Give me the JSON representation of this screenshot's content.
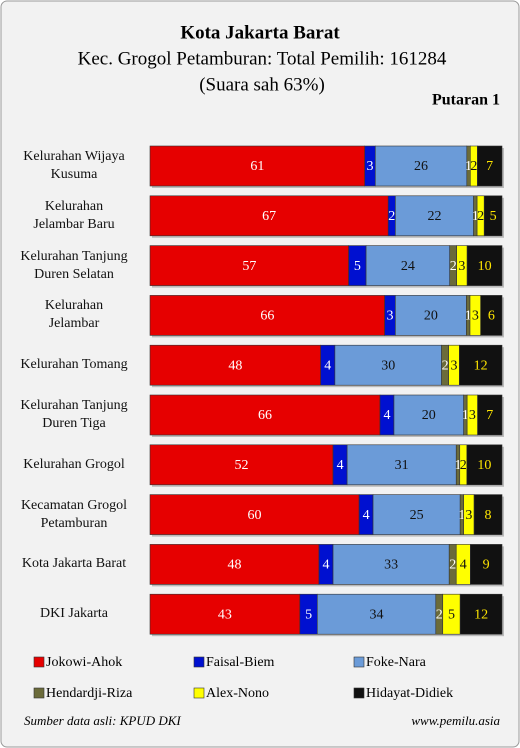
{
  "chart_data": {
    "type": "stacked-bar",
    "title": "Kota Jakarta Barat",
    "subtitle": "Kec. Grogol Petamburan: Total Pemilih: 161284",
    "note": "(Suara sah 63%)",
    "round": "Putaran 1",
    "source": "Sumber data asli: KPUD DKI",
    "website": "www.pemilu.asia",
    "categories": [
      "Kelurahan Wijaya\nKusuma",
      "Kelurahan\nJelambar Baru",
      "Kelurahan Tanjung\nDuren Selatan",
      "Kelurahan\nJelambar",
      "Kelurahan Tomang",
      "Kelurahan Tanjung\nDuren Tiga",
      "Kelurahan Grogol",
      "Kecamatan Grogol\nPetamburan",
      "Kota Jakarta Barat",
      "DKI Jakarta"
    ],
    "series": [
      {
        "name": "Jokowi-Ahok",
        "color": "#e60000",
        "values": [
          61,
          67,
          57,
          66,
          48,
          66,
          52,
          60,
          48,
          43
        ]
      },
      {
        "name": "Faisal-Biem",
        "color": "#0010d0",
        "values": [
          3,
          2,
          5,
          3,
          4,
          4,
          4,
          4,
          4,
          5
        ]
      },
      {
        "name": "Foke-Nara",
        "color": "#6b9bd8",
        "values": [
          26,
          22,
          24,
          20,
          30,
          20,
          31,
          25,
          33,
          34
        ]
      },
      {
        "name": "Hendardji-Riza",
        "color": "#6b6b3a",
        "values": [
          1,
          1,
          2,
          1,
          2,
          1,
          1,
          1,
          2,
          2
        ]
      },
      {
        "name": "Alex-Nono",
        "color": "#ffff00",
        "values": [
          2,
          2,
          3,
          3,
          3,
          3,
          2,
          3,
          4,
          5
        ]
      },
      {
        "name": "Hidayat-Didiek",
        "color": "#111111",
        "values": [
          7,
          5,
          10,
          6,
          12,
          7,
          10,
          8,
          9,
          12
        ]
      }
    ]
  }
}
